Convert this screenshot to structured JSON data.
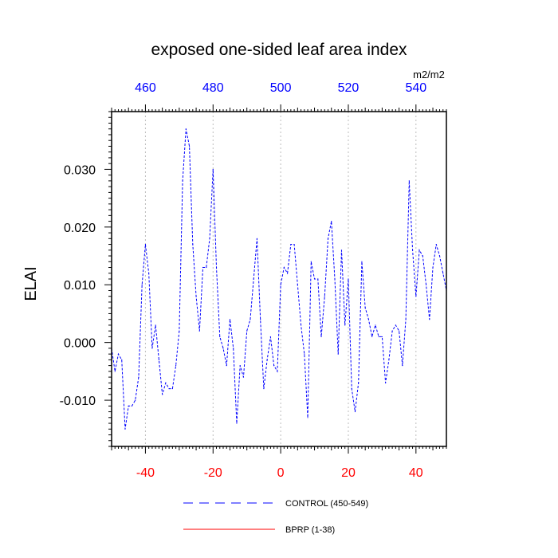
{
  "chart_data": {
    "type": "line",
    "title": "exposed one-sided leaf area index",
    "units": "m2/m2",
    "ylabel": "ELAI",
    "xlabel": "",
    "xlim": [
      -50,
      49
    ],
    "ylim": [
      -0.018,
      0.04
    ],
    "grid": "dotted vertical lines at bottom-axis major ticks",
    "yticks": [
      -0.01,
      0.0,
      0.01,
      0.02,
      0.03
    ],
    "ytick_labels": [
      "-0.010",
      "0.000",
      "0.010",
      "0.020",
      "0.030"
    ],
    "xticks_bottom": [
      -40,
      -20,
      0,
      20,
      40
    ],
    "xtick_labels_bottom": [
      "-40",
      "-20",
      "0",
      "20",
      "40"
    ],
    "xticks_top": [
      460,
      480,
      500,
      520,
      540
    ],
    "xtick_labels_top": [
      "460",
      "480",
      "500",
      "520",
      "540"
    ],
    "top_axis_offset": 500,
    "colors": {
      "control": "#0000ff",
      "bprp": "#ff0000",
      "bottom_ticks": "#ff0000",
      "top_ticks": "#0000ff"
    },
    "legend": {
      "placement": "bottom-center",
      "entries": [
        "CONTROL (450-549)",
        "BPRP (1-38)"
      ]
    },
    "series": [
      {
        "name": "CONTROL (450-549)",
        "style": "dashed",
        "color": "#0000ff",
        "x": [
          -50,
          -49,
          -48,
          -47,
          -46,
          -45,
          -44,
          -43,
          -42,
          -41,
          -40,
          -39,
          -38,
          -37,
          -36,
          -35,
          -34,
          -33,
          -32,
          -31,
          -30,
          -29,
          -28,
          -27,
          -26,
          -25,
          -24,
          -23,
          -22,
          -21,
          -20,
          -19,
          -18,
          -17,
          -16,
          -15,
          -14,
          -13,
          -12,
          -11,
          -10,
          -9,
          -8,
          -7,
          -6,
          -5,
          -4,
          -3,
          -2,
          -1,
          0,
          1,
          2,
          3,
          4,
          5,
          6,
          7,
          8,
          9,
          10,
          11,
          12,
          13,
          14,
          15,
          16,
          17,
          18,
          19,
          20,
          21,
          22,
          23,
          24,
          25,
          26,
          27,
          28,
          29,
          30,
          31,
          32,
          33,
          34,
          35,
          36,
          37,
          38,
          39,
          40,
          41,
          42,
          43,
          44,
          45,
          46,
          47,
          48,
          49
        ],
        "values": [
          -0.001,
          -0.005,
          -0.002,
          -0.003,
          -0.015,
          -0.011,
          -0.011,
          -0.01,
          -0.006,
          0.01,
          0.017,
          0.012,
          -0.001,
          0.003,
          -0.003,
          -0.009,
          -0.007,
          -0.008,
          -0.008,
          -0.004,
          0.002,
          0.028,
          0.037,
          0.034,
          0.017,
          0.008,
          0.002,
          0.013,
          0.013,
          0.018,
          0.03,
          0.013,
          0.001,
          -0.001,
          -0.004,
          0.004,
          -0.001,
          -0.014,
          -0.004,
          -0.006,
          0.002,
          0.004,
          0.011,
          0.018,
          0.004,
          -0.008,
          -0.003,
          0.001,
          -0.004,
          -0.005,
          0.01,
          0.013,
          0.012,
          0.017,
          0.017,
          0.01,
          0.003,
          -0.002,
          -0.013,
          0.014,
          0.011,
          0.011,
          0.001,
          0.008,
          0.018,
          0.021,
          0.011,
          -0.002,
          0.016,
          0.003,
          0.011,
          -0.008,
          -0.012,
          -0.007,
          0.014,
          0.006,
          0.004,
          0.001,
          0.003,
          0.001,
          0.001,
          -0.007,
          -0.003,
          0.002,
          0.003,
          0.002,
          -0.004,
          0.004,
          0.028,
          0.016,
          0.008,
          0.016,
          0.015,
          0.01,
          0.004,
          0.013,
          0.017,
          0.015,
          0.012,
          0.009
        ]
      },
      {
        "name": "BPRP (1-38)",
        "style": "solid",
        "color": "#ff0000",
        "x": [],
        "values": []
      }
    ]
  }
}
